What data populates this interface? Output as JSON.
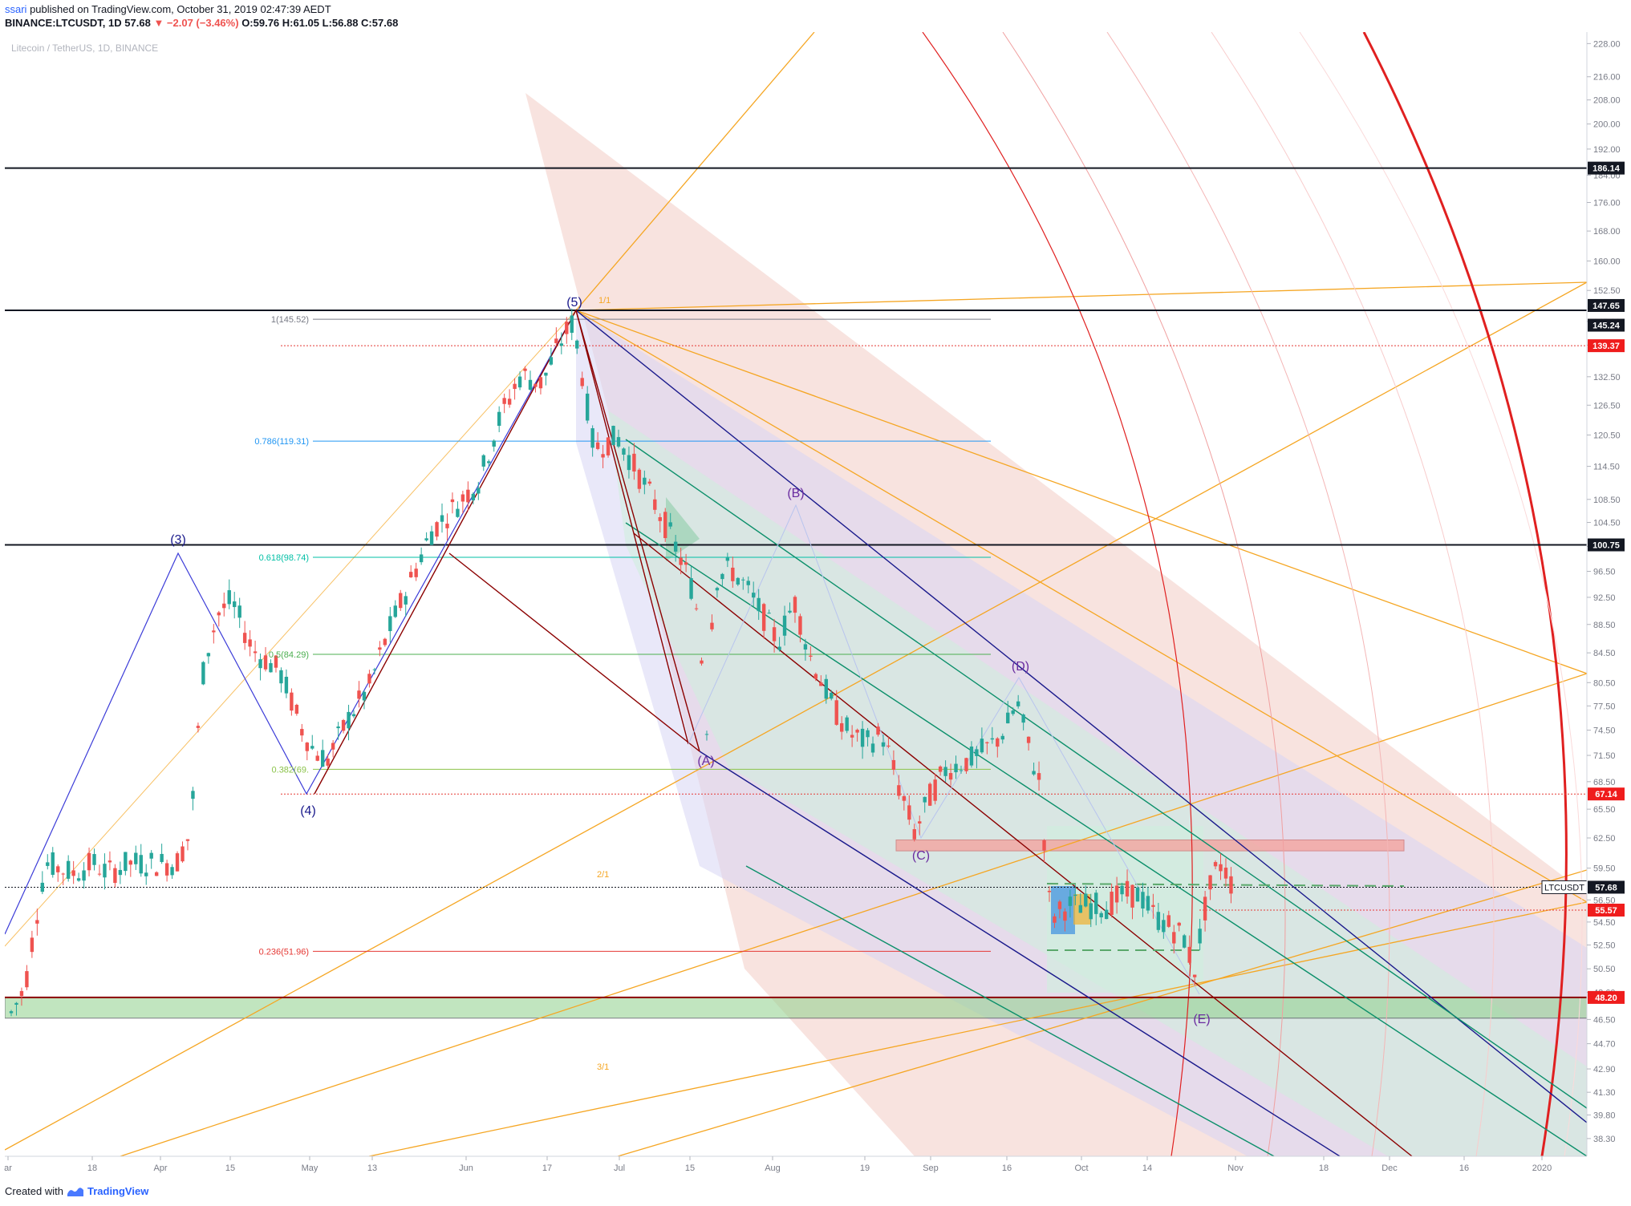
{
  "header": {
    "author": "ssari",
    "published_text": "published on TradingView.com, October 31, 2019 02:47:39 AEDT",
    "symbol": "BINANCE:LTCUSDT, 1D",
    "last": "57.68",
    "change": "▼ −2.07 (−3.46%)",
    "ohlc": "O:59.76 H:61.05 L:56.88 C:57.68"
  },
  "footer": {
    "created_with": "Created with",
    "brand": "TradingView"
  },
  "colors": {
    "up": "#26a69a",
    "down": "#ef5350",
    "navy": "#1a1a8c",
    "teal": "#0b8f6a",
    "maroon": "#8b0000",
    "orange": "#f5a623",
    "red": "#e02020"
  },
  "chart_data": {
    "type": "candlestick",
    "title": "Litecoin / TetherUS, 1D, BINANCE",
    "ylim": [
      37.6,
      229.0
    ],
    "y_scale": "log",
    "y_ticks": [
      "228.00",
      "216.00",
      "208.00",
      "200.00",
      "192.00",
      "184.00",
      "176.00",
      "168.00",
      "160.00",
      "152.50",
      "145.00",
      "139.50",
      "132.50",
      "126.50",
      "120.50",
      "114.50",
      "108.50",
      "104.50",
      "100.50",
      "96.50",
      "92.50",
      "88.50",
      "84.50",
      "80.50",
      "77.50",
      "74.50",
      "71.50",
      "68.50",
      "65.50",
      "62.50",
      "59.50",
      "56.50",
      "54.50",
      "52.50",
      "50.50",
      "48.60",
      "46.50",
      "44.70",
      "42.90",
      "41.30",
      "39.80",
      "38.30"
    ],
    "x_ticks": [
      "ar",
      "18",
      "Apr",
      "15",
      "May",
      "13",
      "Jun",
      "17",
      "Jul",
      "15",
      "Aug",
      "19",
      "Sep",
      "16",
      "Oct",
      "14",
      "Nov",
      "18",
      "Dec",
      "16",
      "2020"
    ],
    "wave_labels": [
      "(3)",
      "(4)",
      "(5)",
      "(A)",
      "(B)",
      "(C)",
      "(D)",
      "(E)"
    ],
    "fib_levels": [
      {
        "label": "1(145.52)",
        "value": 145.52,
        "color": "#787b86"
      },
      {
        "label": "0.786(119.31)",
        "value": 119.31,
        "color": "#2196f3"
      },
      {
        "label": "0.618(98.74)",
        "value": 98.74,
        "color": "#00bfa5"
      },
      {
        "label": "0.5(84.29)",
        "value": 84.29,
        "color": "#4caf50"
      },
      {
        "label": "0.382(69.",
        "value": 69.9,
        "color": "#8bc34a"
      },
      {
        "label": "0.236(51.96)",
        "value": 51.96,
        "color": "#e53935"
      }
    ],
    "fan_labels": [
      "1/1",
      "2/1",
      "3/1"
    ],
    "price_tags": [
      {
        "label": "186.14",
        "value": 186.14,
        "bg": "#131722"
      },
      {
        "label": "147.65",
        "value": 147.65,
        "bg": "#131722"
      },
      {
        "label": "145.24",
        "value": 145.24,
        "bg": "#131722"
      },
      {
        "label": "139.37",
        "value": 139.37,
        "bg": "#ef1c1c"
      },
      {
        "label": "100.75",
        "value": 100.75,
        "bg": "#131722"
      },
      {
        "label": "67.14",
        "value": 67.14,
        "bg": "#ef1c1c"
      },
      {
        "label": "57.68",
        "value": 57.68,
        "bg": "#131722"
      },
      {
        "label": "55.57",
        "value": 55.57,
        "bg": "#ef1c1c"
      },
      {
        "label": "48.20",
        "value": 48.2,
        "bg": "#ef1c1c"
      }
    ],
    "symbol_tag": "LTCUSDT",
    "horizontal_levels": [
      186.14,
      147.65,
      100.75,
      48.2
    ],
    "support_zone": [
      46.6,
      48.2
    ],
    "resistance_zone": [
      61.2,
      62.3
    ],
    "dotted_levels": [
      {
        "value": 139.37,
        "color": "#e53935"
      },
      {
        "value": 67.14,
        "color": "#e53935"
      },
      {
        "value": 57.68,
        "color": "#131722"
      },
      {
        "value": 55.57,
        "color": "#e53935"
      }
    ]
  }
}
